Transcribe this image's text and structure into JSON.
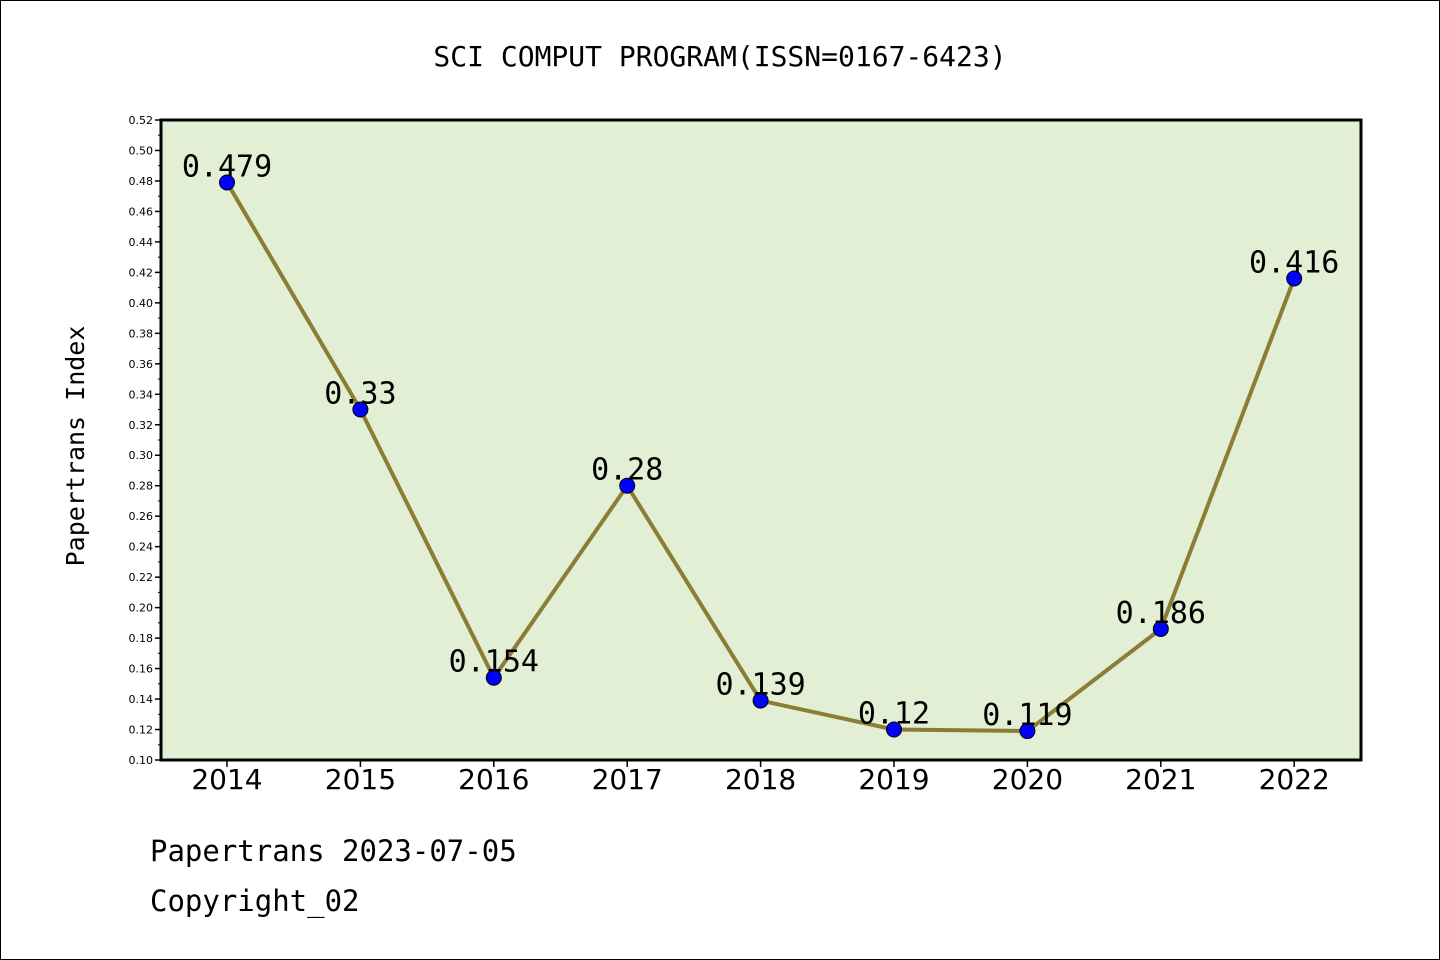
{
  "chart_data": {
    "type": "line",
    "title": "SCI COMPUT PROGRAM(ISSN=0167-6423)",
    "xlabel": "",
    "ylabel": "Papertrans Index",
    "categories": [
      "2014",
      "2015",
      "2016",
      "2017",
      "2018",
      "2019",
      "2020",
      "2021",
      "2022"
    ],
    "values": [
      0.479,
      0.33,
      0.154,
      0.28,
      0.139,
      0.12,
      0.119,
      0.186,
      0.416
    ],
    "data_labels": [
      "0.479",
      "0.33",
      "0.154",
      "0.28",
      "0.139",
      "0.12",
      "0.119",
      "0.186",
      "0.416"
    ],
    "ylim": [
      0.1,
      0.52
    ],
    "yticks": [
      "0.10",
      "0.12",
      "0.14",
      "0.16",
      "0.18",
      "0.20",
      "0.22",
      "0.24",
      "0.26",
      "0.28",
      "0.30",
      "0.32",
      "0.34",
      "0.36",
      "0.38",
      "0.40",
      "0.42",
      "0.44",
      "0.46",
      "0.48",
      "0.50",
      "0.52"
    ],
    "grid": false,
    "colors": {
      "plot_background": "#e2efd5",
      "line": "#8b7d33",
      "marker": "#0000ff"
    }
  },
  "footer": {
    "line1": "Papertrans 2023-07-05",
    "line2": "Copyright_02"
  }
}
